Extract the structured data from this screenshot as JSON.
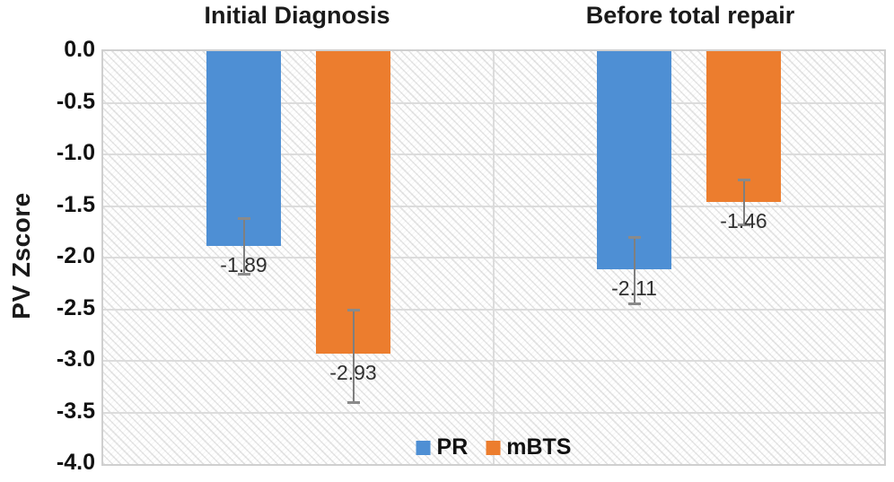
{
  "chart_data": {
    "type": "bar",
    "title": "",
    "panel_titles": [
      "Initial Diagnosis",
      "Before total repair"
    ],
    "categories": [
      "Initial Diagnosis",
      "Before total repair"
    ],
    "series": [
      {
        "name": "PR",
        "color": "#4E8FD4",
        "values": [
          -1.89,
          -2.11
        ],
        "error_ranges": [
          [
            -1.62,
            -2.16
          ],
          [
            -1.8,
            -2.44
          ]
        ]
      },
      {
        "name": "mBTS",
        "color": "#EC7D2E",
        "values": [
          -2.93,
          -1.46
        ],
        "error_ranges": [
          [
            -2.5,
            -3.4
          ],
          [
            -1.24,
            -1.68
          ]
        ]
      }
    ],
    "data_labels": [
      [
        "-1.89",
        "-2.11"
      ],
      [
        "-2.93",
        "-1.46"
      ]
    ],
    "xlabel": "",
    "ylabel": "PV Zscore",
    "ylim": [
      0,
      -4
    ],
    "yticks": [
      "0.0",
      "-0.5",
      "-1.0",
      "-1.5",
      "-2.0",
      "-2.5",
      "-3.0",
      "-3.5",
      "-4.0"
    ],
    "grid": true,
    "legend_position": "bottom-center-inside",
    "colors": {
      "bar_blue": "#4E8FD4",
      "bar_orange": "#EC7D2E",
      "gridline": "#dcdcdc",
      "plot_border": "#cfcfcf",
      "error_bar": "#7f7f7f",
      "data_label_text": "#303030",
      "axis_text": "#111111"
    }
  }
}
